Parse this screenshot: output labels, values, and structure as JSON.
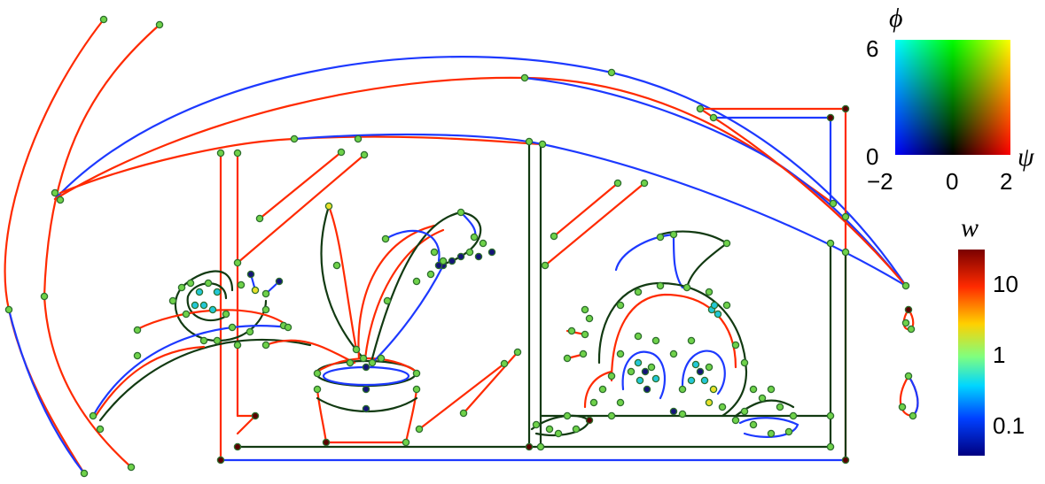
{
  "colors": {
    "red": "#ff2a00",
    "blue": "#1d39ff",
    "dark_green": "#123a12",
    "node_fill": "#6fd24a",
    "node_stroke": "#2e6e2e",
    "node_dark_red": "#5a0000",
    "node_navy": "#141478",
    "node_cyan": "#22c8d8",
    "node_yellow": "#e9e02a"
  },
  "phase_legend": {
    "phi_label": "ϕ",
    "psi_label": "ψ",
    "phi_top": "6",
    "phi_bottom": "0",
    "psi_left": "−2",
    "psi_mid": "0",
    "psi_right": "2",
    "corner_colors": {
      "top_left": "#00ffff",
      "top_mid": "#00ff00",
      "top_right": "#ffff00",
      "bottom_left": "#0000ff",
      "bottom_mid": "#000000",
      "bottom_right": "#ff0000"
    }
  },
  "weight_legend": {
    "label": "w",
    "ticks": [
      "10",
      "1",
      "0.1"
    ],
    "gradient": [
      "#7a0000",
      "#ff2a00",
      "#ffd000",
      "#7fff7f",
      "#00d6ff",
      "#0040ff",
      "#000080"
    ]
  }
}
